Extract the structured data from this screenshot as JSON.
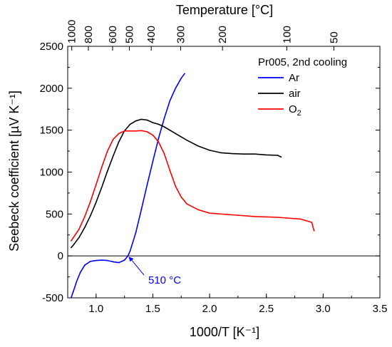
{
  "chart_data": {
    "type": "line",
    "title": "",
    "xlabel": "1000/T [K⁻¹]",
    "ylabel": "Seebeck coefficient [µV K⁻¹]",
    "x2label": "Temperature [°C]",
    "xlim": [
      0.75,
      3.5
    ],
    "ylim": [
      -500,
      2500
    ],
    "xticks": [
      1.0,
      1.5,
      2.0,
      2.5,
      3.0,
      3.5
    ],
    "xtick_labels": [
      "1.0",
      "1.5",
      "2.0",
      "2.5",
      "3.0",
      "3.5"
    ],
    "yticks": [
      -500,
      0,
      500,
      1000,
      1500,
      2000,
      2500
    ],
    "ytick_labels": [
      "-500",
      "0",
      "500",
      "1000",
      "1500",
      "2000",
      "2500"
    ],
    "top_ticks": [
      {
        "label": "1000",
        "celsius": 1000
      },
      {
        "label": "800",
        "celsius": 800
      },
      {
        "label": "600",
        "celsius": 600
      },
      {
        "label": "500",
        "celsius": 500
      },
      {
        "label": "400",
        "celsius": 400
      },
      {
        "label": "300",
        "celsius": 300
      },
      {
        "label": "200",
        "celsius": 200
      },
      {
        "label": "100",
        "celsius": 100
      },
      {
        "label": "50",
        "celsius": 50
      }
    ],
    "grid": false,
    "legend_title": "Pr005, 2nd cooling",
    "legend_position": "top-right",
    "zero_line": 0,
    "series": [
      {
        "name": "Ar",
        "label_parts": [
          "Ar",
          ""
        ],
        "color": "#0000ff",
        "x": [
          0.78,
          0.8,
          0.83,
          0.86,
          0.9,
          0.95,
          1.0,
          1.05,
          1.1,
          1.15,
          1.2,
          1.25,
          1.28,
          1.3,
          1.35,
          1.4,
          1.45,
          1.5,
          1.55,
          1.6,
          1.65,
          1.7,
          1.75,
          1.78
        ],
        "y": [
          -500,
          -420,
          -300,
          -200,
          -110,
          -65,
          -55,
          -50,
          -55,
          -70,
          -80,
          -50,
          0,
          60,
          280,
          560,
          850,
          1130,
          1400,
          1640,
          1850,
          2000,
          2120,
          2175
        ]
      },
      {
        "name": "air",
        "label_parts": [
          "air",
          ""
        ],
        "color": "#000000",
        "x": [
          0.78,
          0.8,
          0.85,
          0.9,
          0.95,
          1.0,
          1.05,
          1.1,
          1.15,
          1.2,
          1.25,
          1.3,
          1.35,
          1.4,
          1.45,
          1.5,
          1.55,
          1.6,
          1.7,
          1.8,
          1.9,
          2.0,
          2.1,
          2.2,
          2.3,
          2.4,
          2.5,
          2.6,
          2.63
        ],
        "y": [
          100,
          130,
          220,
          340,
          480,
          640,
          820,
          1010,
          1190,
          1360,
          1490,
          1570,
          1610,
          1630,
          1620,
          1590,
          1570,
          1540,
          1460,
          1380,
          1310,
          1260,
          1230,
          1220,
          1215,
          1215,
          1205,
          1200,
          1180
        ]
      },
      {
        "name": "O2",
        "label_parts": [
          "O",
          "2"
        ],
        "color": "#ff0000",
        "x": [
          0.78,
          0.8,
          0.85,
          0.9,
          0.95,
          1.0,
          1.05,
          1.1,
          1.15,
          1.2,
          1.25,
          1.3,
          1.35,
          1.4,
          1.45,
          1.5,
          1.55,
          1.6,
          1.65,
          1.7,
          1.75,
          1.8,
          1.9,
          2.0,
          2.2,
          2.4,
          2.6,
          2.8,
          2.9,
          2.92
        ],
        "y": [
          180,
          220,
          320,
          470,
          650,
          850,
          1060,
          1250,
          1390,
          1460,
          1490,
          1490,
          1490,
          1495,
          1480,
          1440,
          1360,
          1220,
          1020,
          830,
          700,
          620,
          550,
          510,
          490,
          470,
          460,
          440,
          400,
          300
        ]
      }
    ],
    "annotations": [
      {
        "text": "510 °C",
        "x": 1.28,
        "y": 0,
        "color": "#0000ff"
      }
    ]
  }
}
